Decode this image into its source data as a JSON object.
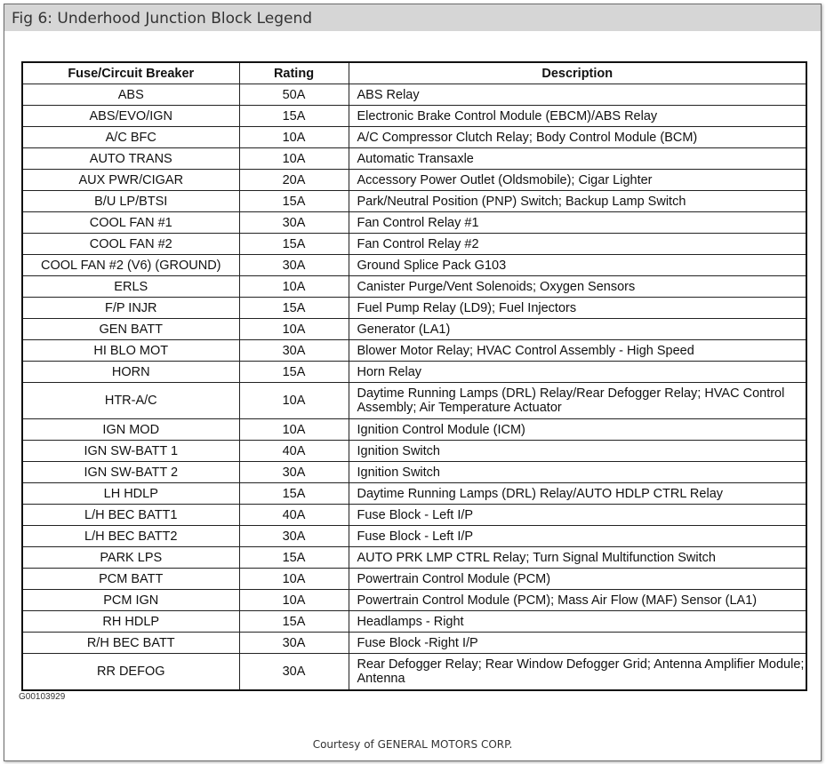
{
  "title": "Fig 6: Underhood Junction Block Legend",
  "table": {
    "headers": [
      "Fuse/Circuit Breaker",
      "Rating",
      "Description"
    ],
    "rows": [
      {
        "fuse": "ABS",
        "rating": "50A",
        "desc": "ABS Relay"
      },
      {
        "fuse": "ABS/EVO/IGN",
        "rating": "15A",
        "desc": "Electronic Brake Control Module  (EBCM)/ABS Relay"
      },
      {
        "fuse": "A/C BFC",
        "rating": "10A",
        "desc": "A/C Compressor Clutch Relay; Body Control Module  (BCM)"
      },
      {
        "fuse": "AUTO TRANS",
        "rating": "10A",
        "desc": "Automatic Transaxle"
      },
      {
        "fuse": "AUX PWR/CIGAR",
        "rating": "20A",
        "desc": "Accessory Power Outlet (Oldsmobile); Cigar Lighter"
      },
      {
        "fuse": "B/U LP/BTSI",
        "rating": "15A",
        "desc": "Park/Neutral Position  (PNP) Switch; Backup Lamp Switch"
      },
      {
        "fuse": "COOL FAN #1",
        "rating": "30A",
        "desc": "Fan Control Relay #1"
      },
      {
        "fuse": "COOL FAN #2",
        "rating": "15A",
        "desc": "Fan Control Relay #2"
      },
      {
        "fuse": "COOL FAN #2 (V6) (GROUND)",
        "rating": "30A",
        "desc": "Ground Splice Pack G103"
      },
      {
        "fuse": "ERLS",
        "rating": "10A",
        "desc": "Canister Purge/Vent Solenoids; Oxygen Sensors"
      },
      {
        "fuse": "F/P INJR",
        "rating": "15A",
        "desc": "Fuel Pump Relay (LD9); Fuel Injectors"
      },
      {
        "fuse": "GEN BATT",
        "rating": "10A",
        "desc": "Generator (LA1)"
      },
      {
        "fuse": "HI BLO MOT",
        "rating": "30A",
        "desc": "Blower Motor Relay; HVAC Control Assembly - High Speed"
      },
      {
        "fuse": "HORN",
        "rating": "15A",
        "desc": "Horn Relay"
      },
      {
        "fuse": "HTR-A/C",
        "rating": "10A",
        "desc": "Daytime Running Lamps  (DRL) Relay/Rear Defogger Relay; HVAC Control Assembly; Air Temperature Actuator",
        "tall": true
      },
      {
        "fuse": "IGN MOD",
        "rating": "10A",
        "desc": "Ignition Control Module  (ICM)"
      },
      {
        "fuse": "IGN SW-BATT 1",
        "rating": "40A",
        "desc": "Ignition Switch"
      },
      {
        "fuse": "IGN SW-BATT 2",
        "rating": "30A",
        "desc": "Ignition Switch"
      },
      {
        "fuse": "LH HDLP",
        "rating": "15A",
        "desc": "Daytime Running Lamps  (DRL) Relay/AUTO HDLP CTRL Relay"
      },
      {
        "fuse": "L/H BEC BATT1",
        "rating": "40A",
        "desc": "Fuse Block - Left I/P"
      },
      {
        "fuse": "L/H BEC BATT2",
        "rating": "30A",
        "desc": "Fuse Block - Left I/P"
      },
      {
        "fuse": "PARK LPS",
        "rating": "15A",
        "desc": "AUTO PRK LMP CTRL Relay; Turn Signal Multifunction Switch"
      },
      {
        "fuse": "PCM BATT",
        "rating": "10A",
        "desc": "Powertrain Control Module  (PCM)"
      },
      {
        "fuse": "PCM IGN",
        "rating": "10A",
        "desc": "Powertrain Control Module  (PCM); Mass Air Flow (MAF) Sensor (LA1)"
      },
      {
        "fuse": "RH HDLP",
        "rating": "15A",
        "desc": "Headlamps - Right"
      },
      {
        "fuse": "R/H BEC BATT",
        "rating": "30A",
        "desc": "Fuse Block -Right I/P"
      },
      {
        "fuse": "RR DEFOG",
        "rating": "30A",
        "desc": "Rear Defogger Relay; Rear Window Defogger Grid; Antenna Amplifier Module; Antenna",
        "tall": true
      }
    ]
  },
  "figure_code": "G00103929",
  "courtesy": "Courtesy of GENERAL MOTORS CORP."
}
